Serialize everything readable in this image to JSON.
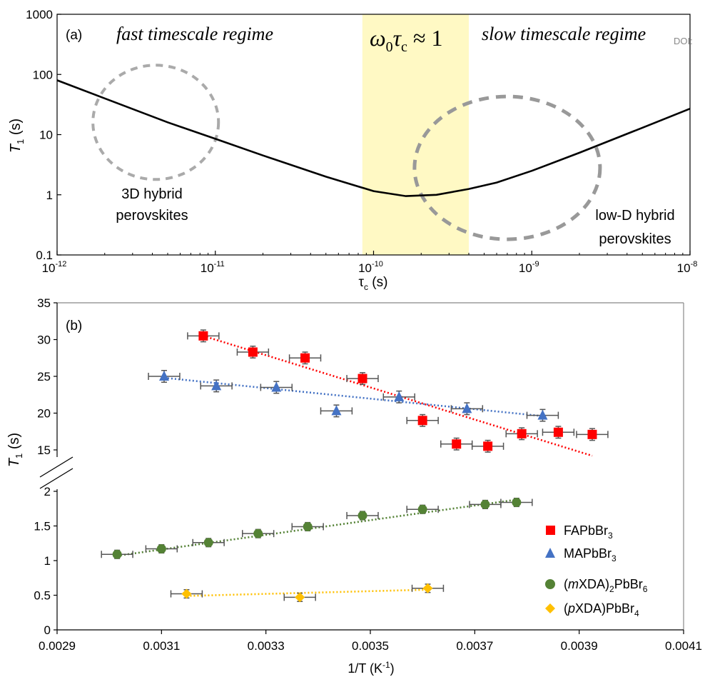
{
  "chart_data": [
    {
      "panel": "(a)",
      "type": "line",
      "ylabel": "T1 (s)",
      "xlabel": "τc (s)",
      "xscale": "log",
      "yscale": "log",
      "xlim": [
        1e-12,
        1e-08
      ],
      "ylim": [
        0.1,
        1000
      ],
      "x_ticks": [
        "10-12",
        "10-11",
        "10-10",
        "10-9",
        "10-8"
      ],
      "y_ticks": [
        "0.1",
        "1",
        "10",
        "100",
        "1000"
      ],
      "series": [
        {
          "x": [
            1e-12,
            2e-12,
            5e-12,
            1e-11,
            2e-11,
            5e-11,
            1e-10,
            1.6e-10,
            2.5e-10,
            4e-10,
            6e-10,
            1e-09,
            2e-09,
            5e-09,
            1e-08
          ],
          "y": [
            80,
            40,
            16,
            8.5,
            4.5,
            2,
            1.15,
            0.95,
            1.0,
            1.25,
            1.6,
            2.5,
            5,
            13,
            27
          ]
        }
      ],
      "shaded_band": {
        "x": [
          8.5e-11,
          4e-10
        ],
        "color": "#fff9c4"
      },
      "band_label": "ω0τc ≈ 1",
      "annotations": {
        "fast": "fast timescale regime",
        "slow": "slow timescale regime",
        "doi": "DOI:",
        "left_l1": "3D hybrid",
        "left_l2": "perovskites",
        "right_l1": "low-D hybrid",
        "right_l2": "perovskites"
      },
      "circles": [
        {
          "cx": 4.2e-12,
          "cy": 16
        },
        {
          "cx": 7e-10,
          "cy": 2.8
        }
      ]
    },
    {
      "panel": "(b)",
      "type": "scatter",
      "ylabel": "T1 (s)",
      "xlabel": "1/T (K-1)",
      "xlim": [
        0.0029,
        0.0041
      ],
      "x_ticks": [
        "0.0029",
        "0.0031",
        "0.0033",
        "0.0035",
        "0.0037",
        "0.0039",
        "0.0041"
      ],
      "y_ticks_upper": [
        "15",
        "20",
        "25",
        "30",
        "35"
      ],
      "y_ticks_lower": [
        "0",
        "0.5",
        "1",
        "1.5",
        "2"
      ],
      "axis_break": true,
      "series": [
        {
          "name": "FAPbBr3",
          "marker": "square",
          "color": "#ff0000",
          "segment": "upper",
          "xerr": 3e-05,
          "yerr": 0.8,
          "x": [
            0.00318,
            0.003275,
            0.003375,
            0.003485,
            0.0036,
            0.003665,
            0.003725,
            0.00379,
            0.00386,
            0.003925
          ],
          "y": [
            30.5,
            28.3,
            27.5,
            24.7,
            19.0,
            15.8,
            15.5,
            17.2,
            17.4,
            17.1
          ],
          "fit": {
            "x": [
              0.00318,
              0.003925
            ],
            "y": [
              30.5,
              14.2
            ],
            "color": "#ff0000"
          }
        },
        {
          "name": "MAPbBr3",
          "marker": "triangle",
          "color": "#4472c4",
          "segment": "upper",
          "xerr": 3e-05,
          "yerr": 0.8,
          "x": [
            0.003105,
            0.003205,
            0.00332,
            0.003435,
            0.003555,
            0.003685,
            0.00383
          ],
          "y": [
            25.0,
            23.7,
            23.5,
            20.3,
            22.2,
            20.6,
            19.7
          ],
          "fit": {
            "x": [
              0.003105,
              0.00383
            ],
            "y": [
              24.8,
              19.6
            ],
            "color": "#4472c4"
          }
        },
        {
          "name": "(mXDA)2PbBr6",
          "marker": "circle",
          "color": "#548235",
          "segment": "lower",
          "xerr": 3e-05,
          "yerr": 0.06,
          "x": [
            0.003015,
            0.0031,
            0.00319,
            0.003285,
            0.00338,
            0.003485,
            0.0036,
            0.00372,
            0.00378
          ],
          "y": [
            1.09,
            1.17,
            1.26,
            1.39,
            1.49,
            1.65,
            1.74,
            1.81,
            1.84
          ],
          "fit": {
            "x": [
              0.003015,
              0.00378
            ],
            "y": [
              1.07,
              1.88
            ],
            "color": "#548235"
          }
        },
        {
          "name": "(pXDA)PbBr4",
          "marker": "diamond",
          "color": "#ffc000",
          "segment": "lower",
          "xerr": 3e-05,
          "yerr": 0.06,
          "x": [
            0.003148,
            0.003365,
            0.00361
          ],
          "y": [
            0.52,
            0.47,
            0.6
          ],
          "fit": {
            "x": [
              0.003148,
              0.00361
            ],
            "y": [
              0.49,
              0.58
            ],
            "color": "#ffc000"
          }
        }
      ],
      "legend": [
        "FAPbBr3",
        "MAPbBr3",
        "(mXDA)2PbBr6",
        "(pXDA)PbBr4"
      ],
      "legend_position": "lower-right"
    }
  ]
}
